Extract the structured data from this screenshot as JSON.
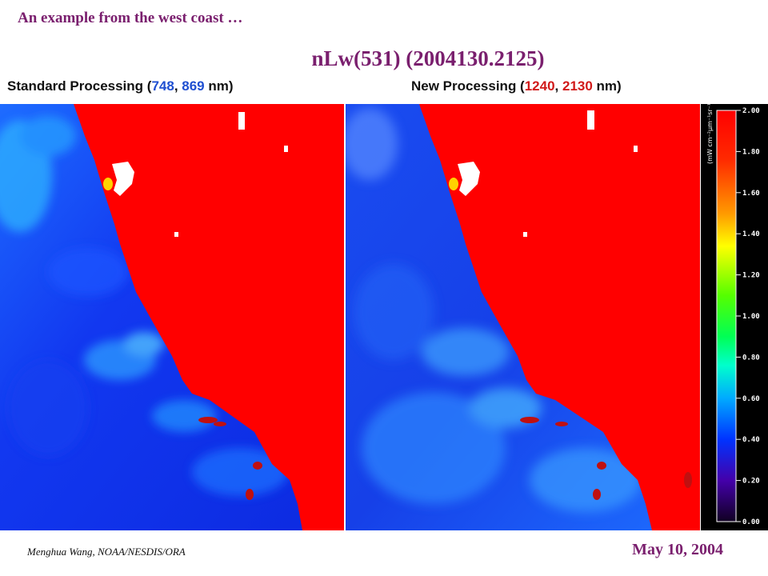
{
  "heading": "An example from the west coast …",
  "title": "nLw(531)   (2004130.2125)",
  "left_caption": {
    "prefix": "Standard Processing (",
    "band1": "748",
    "sep": ", ",
    "band2": "869",
    "suffix": " nm)"
  },
  "right_caption": {
    "prefix": "New Processing (",
    "band1": "1240",
    "sep": ", ",
    "band2": "2130",
    "suffix": " nm)"
  },
  "colorbar": {
    "unit": "(mW cm⁻²μm⁻¹sr⁻¹)",
    "ticks": [
      "2.00",
      "1.80",
      "1.60",
      "1.40",
      "1.20",
      "1.00",
      "0.80",
      "0.60",
      "0.40",
      "0.20",
      "0.00"
    ]
  },
  "footer": {
    "author": "Menghua Wang, NOAA/NESDIS/ORA",
    "date": "May 10, 2004"
  },
  "colors": {
    "title": "#7a1f6e",
    "land": "#ff0000",
    "ocean": "#1a3cff"
  }
}
